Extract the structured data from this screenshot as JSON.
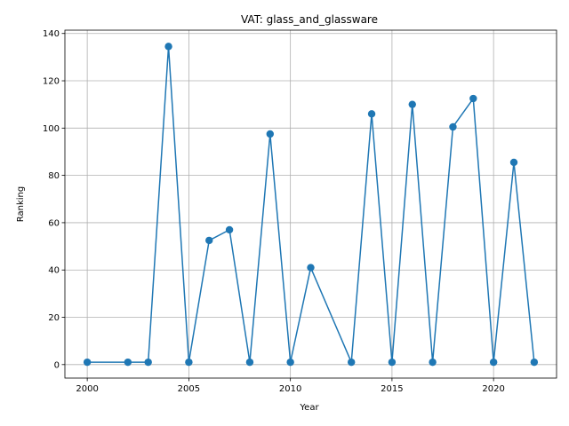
{
  "chart_data": {
    "type": "line",
    "title": "VAT: glass_and_glassware",
    "xlabel": "Year",
    "ylabel": "Ranking",
    "xlim": [
      1998.9,
      2023.1
    ],
    "ylim": [
      -5.7,
      141.4
    ],
    "xticks": [
      2000,
      2005,
      2010,
      2015,
      2020
    ],
    "yticks": [
      0,
      20,
      40,
      60,
      80,
      100,
      120,
      140
    ],
    "grid": true,
    "markers": true,
    "color": "#1f77b4",
    "x": [
      2000,
      2002,
      2003,
      2004,
      2005,
      2006,
      2007,
      2008,
      2009,
      2010,
      2011,
      2013,
      2014,
      2015,
      2016,
      2017,
      2018,
      2019,
      2020,
      2021,
      2022
    ],
    "y": [
      1,
      1,
      1,
      134.5,
      1,
      52.5,
      57,
      1,
      97.5,
      1,
      41,
      1,
      106,
      1,
      110,
      1,
      100.5,
      112.5,
      1,
      85.5,
      1
    ]
  }
}
